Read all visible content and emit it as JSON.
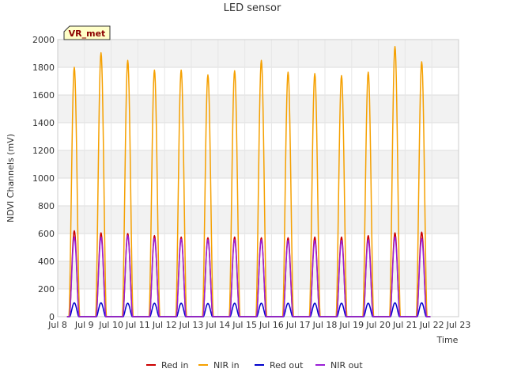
{
  "chart_data": {
    "type": "line",
    "title": "LED sensor",
    "xlabel": "Time",
    "ylabel": "NDVI Channels (mV)",
    "ylim": [
      0,
      2000
    ],
    "yticks": [
      0,
      200,
      400,
      600,
      800,
      1000,
      1200,
      1400,
      1600,
      1800,
      2000
    ],
    "xlim": [
      "2022-07-08",
      "2022-07-23"
    ],
    "xtick_labels": [
      "Jul 8",
      "Jul 9",
      "Jul 10",
      "Jul 11",
      "Jul 12",
      "Jul 13",
      "Jul 14",
      "Jul 15",
      "Jul 16",
      "Jul 17",
      "Jul 18",
      "Jul 19",
      "Jul 20",
      "Jul 21",
      "Jul 22",
      "Jul 23"
    ],
    "grid": true,
    "legend_position": "bottom",
    "annotation": "VR_met",
    "daily_peak_dates": [
      "2022-07-08",
      "2022-07-09",
      "2022-07-10",
      "2022-07-11",
      "2022-07-12",
      "2022-07-13",
      "2022-07-14",
      "2022-07-15",
      "2022-07-16",
      "2022-07-17",
      "2022-07-18",
      "2022-07-19",
      "2022-07-20",
      "2022-07-21"
    ],
    "series": [
      {
        "name": "Red in",
        "color": "#cc0000",
        "daily_peaks": [
          620,
          605,
          600,
          585,
          575,
          570,
          575,
          570,
          570,
          575,
          575,
          585,
          605,
          610
        ]
      },
      {
        "name": "NIR in",
        "color": "#f5a000",
        "daily_peaks": [
          1800,
          1905,
          1850,
          1780,
          1780,
          1745,
          1775,
          1850,
          1765,
          1755,
          1740,
          1765,
          1950,
          1840
        ]
      },
      {
        "name": "Red out",
        "color": "#0000cc",
        "daily_peaks": [
          100,
          100,
          97,
          97,
          97,
          95,
          97,
          97,
          97,
          97,
          97,
          97,
          100,
          100
        ]
      },
      {
        "name": "NIR out",
        "color": "#9a1fd6",
        "daily_peaks": [
          575,
          575,
          585,
          565,
          560,
          555,
          555,
          555,
          550,
          550,
          550,
          555,
          575,
          565
        ]
      }
    ]
  }
}
